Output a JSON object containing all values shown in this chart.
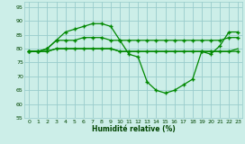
{
  "title": "Humidité relative (%)",
  "background_color": "#cceee8",
  "grid_color": "#99cccc",
  "line_color": "#008800",
  "ylim": [
    55,
    97
  ],
  "xlim": [
    -0.5,
    23.5
  ],
  "yticks": [
    55,
    60,
    65,
    70,
    75,
    80,
    85,
    90,
    95
  ],
  "xticks": [
    0,
    1,
    2,
    3,
    4,
    5,
    6,
    7,
    8,
    9,
    10,
    11,
    12,
    13,
    14,
    15,
    16,
    17,
    18,
    19,
    20,
    21,
    22,
    23
  ],
  "x": [
    0,
    1,
    2,
    3,
    4,
    5,
    6,
    7,
    8,
    9,
    10,
    11,
    12,
    13,
    14,
    15,
    16,
    17,
    18,
    19,
    20,
    21,
    22,
    23
  ],
  "y_dip": [
    79,
    79,
    80,
    83,
    86,
    87,
    88,
    89,
    89,
    88,
    83,
    78,
    77,
    68,
    65,
    64,
    65,
    67,
    69,
    79,
    78,
    81,
    86,
    86
  ],
  "y_mid": [
    79,
    79,
    80,
    83,
    83,
    83,
    84,
    84,
    84,
    83,
    83,
    83,
    83,
    83,
    83,
    83,
    83,
    83,
    83,
    83,
    83,
    83,
    84,
    84
  ],
  "y_flat_marker": [
    79,
    79,
    79,
    80,
    80,
    80,
    80,
    80,
    80,
    80,
    79,
    79,
    79,
    79,
    79,
    79,
    79,
    79,
    79,
    79,
    79,
    79,
    79,
    79
  ],
  "y_smooth": [
    79,
    79,
    79,
    80,
    80,
    80,
    80,
    80,
    80,
    80,
    79,
    79,
    79,
    79,
    79,
    79,
    79,
    79,
    79,
    79,
    79,
    79,
    79,
    80
  ]
}
